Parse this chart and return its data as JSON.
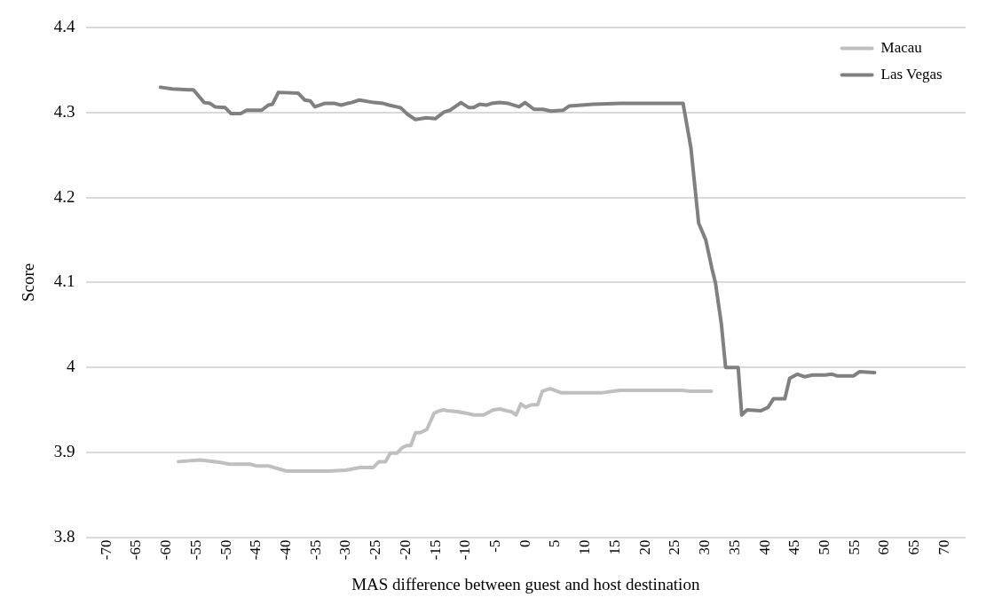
{
  "chart_data": {
    "type": "line",
    "xlabel": "MAS difference between guest and host destination",
    "ylabel": "Score",
    "xlim": [
      -73.5,
      73.5
    ],
    "xticks": [
      -70,
      -65,
      -60,
      -55,
      -50,
      -45,
      -40,
      -35,
      -30,
      -25,
      -20,
      -15,
      -10,
      -5,
      0,
      5,
      10,
      15,
      20,
      25,
      30,
      35,
      40,
      45,
      50,
      55,
      60,
      65,
      70
    ],
    "ylim": [
      3.8,
      4.4
    ],
    "yticks": [
      3.8,
      3.9,
      4,
      4.1,
      4.2,
      4.3,
      4.4
    ],
    "grid": "y",
    "legend": "top right",
    "marker": "none",
    "line_style": "solid",
    "series": [
      {
        "name": "Macau",
        "color": "#bfbfbf",
        "x": [
          -58,
          -54.4,
          -51,
          -49.5,
          -46,
          -45,
          -43,
          -41,
          -40,
          -33,
          -30,
          -27.7,
          -25.5,
          -24.5,
          -23.4,
          -22.6,
          -21.5,
          -20.7,
          -19.9,
          -19.2,
          -18.4,
          -17.6,
          -16.5,
          -15.3,
          -14.7,
          -13.8,
          -13,
          -11.4,
          -10,
          -8.6,
          -7,
          -5.4,
          -4.3,
          -3.2,
          -2.4,
          -1.6,
          -0.8,
          0,
          1,
          2,
          2.8,
          4.1,
          6,
          12.6,
          15.8,
          26,
          27.6,
          31
        ],
        "values": [
          3.889,
          3.891,
          3.888,
          3.886,
          3.886,
          3.884,
          3.884,
          3.88,
          3.878,
          3.878,
          3.879,
          3.882,
          3.882,
          3.889,
          3.889,
          3.899,
          3.899,
          3.905,
          3.908,
          3.908,
          3.923,
          3.923,
          3.927,
          3.946,
          3.948,
          3.95,
          3.949,
          3.948,
          3.946,
          3.944,
          3.944,
          3.95,
          3.951,
          3.949,
          3.948,
          3.944,
          3.957,
          3.953,
          3.956,
          3.956,
          3.972,
          3.975,
          3.97,
          3.97,
          3.973,
          3.973,
          3.972,
          3.972
        ]
      },
      {
        "name": "Las Vegas",
        "color": "#808080",
        "x": [
          -61,
          -59,
          -56.3,
          -55.5,
          -53.7,
          -52.7,
          -51.9,
          -50.2,
          -49.2,
          -47.6,
          -46.6,
          -44.1,
          -43,
          -42.3,
          -41.3,
          -38,
          -36.9,
          -36,
          -35.2,
          -33.6,
          -31.9,
          -30.8,
          -29.8,
          -29.1,
          -27.8,
          -25.3,
          -23.8,
          -22.8,
          -20.9,
          -19.7,
          -18.4,
          -16.6,
          -15.1,
          -13.6,
          -12.6,
          -10.8,
          -9.5,
          -8.7,
          -7.7,
          -6.5,
          -5.7,
          -4.4,
          -2.9,
          -1.1,
          -0.1,
          1.4,
          2.9,
          4.2,
          6.3,
          7.3,
          11.3,
          15.9,
          26.3,
          27.6,
          28.9,
          30.1,
          31.1,
          31.7,
          32.7,
          33.4,
          35.5,
          36.1,
          37,
          39.3,
          40.5,
          41.4,
          43.3,
          44.1,
          45.4,
          46.6,
          47.9,
          50,
          51.2,
          52,
          54.8,
          55.8,
          58.3
        ],
        "values": [
          4.33,
          4.328,
          4.327,
          4.327,
          4.312,
          4.311,
          4.307,
          4.306,
          4.299,
          4.299,
          4.303,
          4.303,
          4.309,
          4.31,
          4.324,
          4.323,
          4.315,
          4.314,
          4.307,
          4.311,
          4.311,
          4.309,
          4.311,
          4.312,
          4.315,
          4.312,
          4.311,
          4.309,
          4.306,
          4.298,
          4.292,
          4.294,
          4.293,
          4.301,
          4.303,
          4.312,
          4.306,
          4.306,
          4.31,
          4.309,
          4.311,
          4.312,
          4.311,
          4.307,
          4.312,
          4.304,
          4.304,
          4.302,
          4.303,
          4.308,
          4.31,
          4.311,
          4.311,
          4.259,
          4.17,
          4.15,
          4.117,
          4.1,
          4.051,
          4,
          4,
          3.944,
          3.95,
          3.949,
          3.953,
          3.963,
          3.963,
          3.987,
          3.992,
          3.989,
          3.991,
          3.991,
          3.992,
          3.99,
          3.99,
          3.995,
          3.994
        ]
      }
    ]
  }
}
